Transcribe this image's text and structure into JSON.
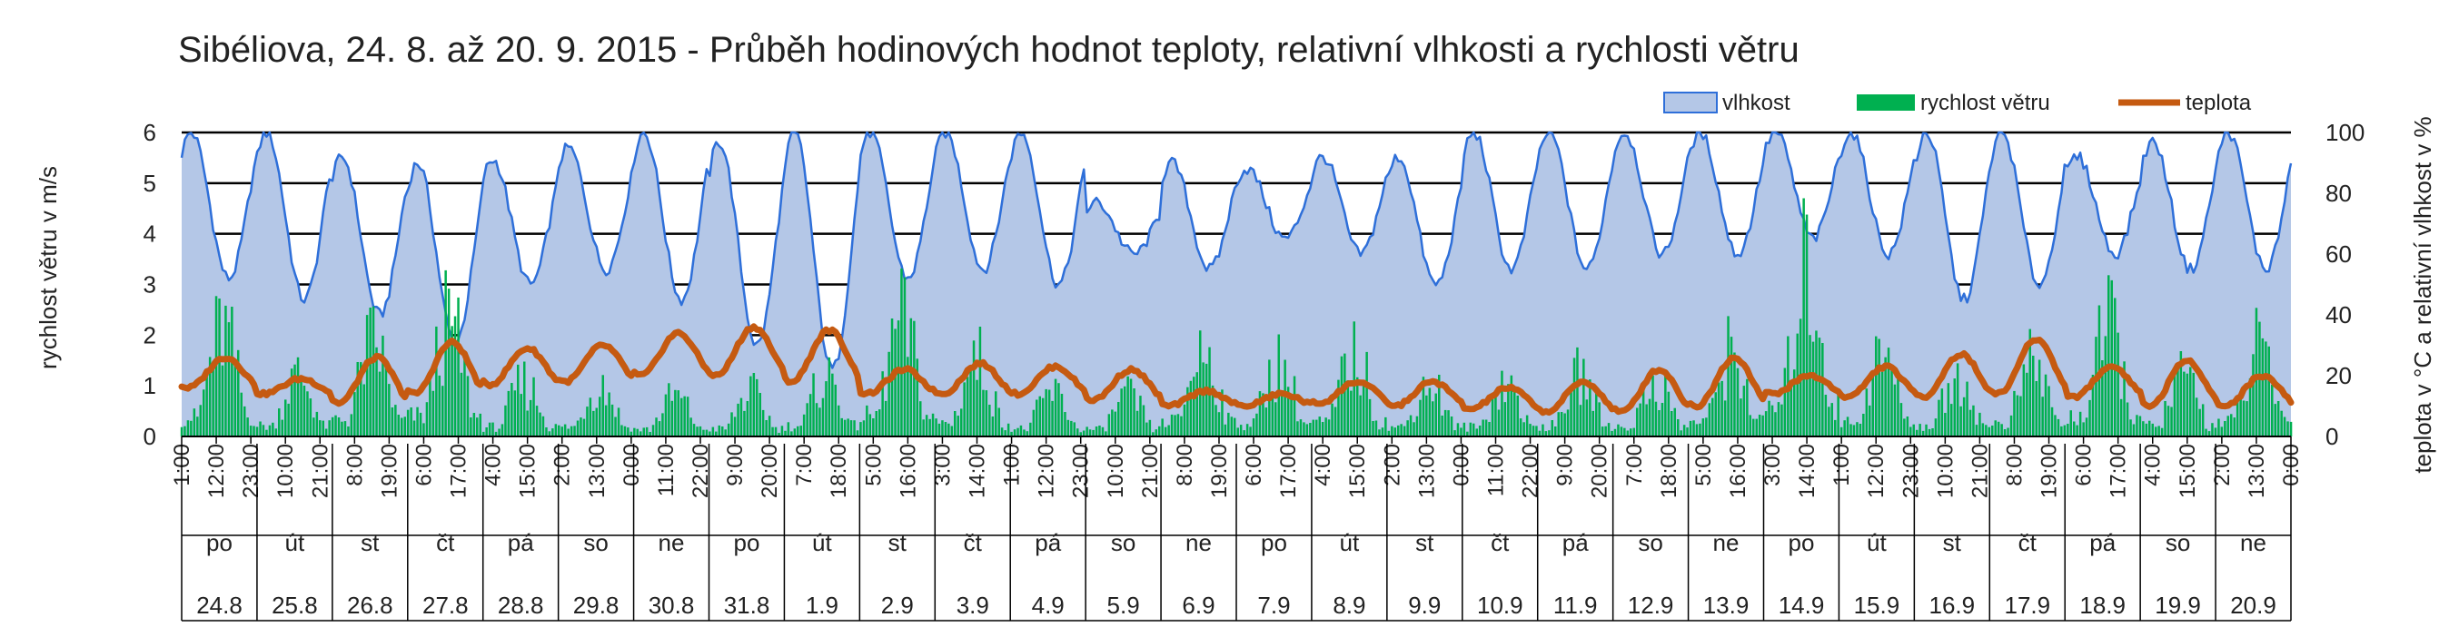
{
  "chart_data": {
    "type": "area",
    "title": "Sibéliova, 24. 8. až 20. 9. 2015 - Průběh hodinových hodnot teploty, relativní vlhkosti a rychlosti větru",
    "ylabel_left": "rychlost větru v m/s",
    "ylabel_right": "teplota v °C a relativní vlhkost v %",
    "ylim_left": [
      0,
      6
    ],
    "ylim_right": [
      0,
      100
    ],
    "yticks_left": [
      "0",
      "1",
      "2",
      "3",
      "4",
      "5",
      "6"
    ],
    "yticks_right": [
      "0",
      "20",
      "40",
      "60",
      "80",
      "100"
    ],
    "grid": true,
    "legend_position": "top-right",
    "colors": {
      "humidity_fill": "#b4c7e7",
      "humidity_line": "#2e6fd9",
      "wind": "#00b050",
      "temperature": "#c55a11"
    },
    "series": [
      {
        "name": "vlhkost",
        "kind": "area",
        "axis": "right",
        "unit": "%",
        "daily_min": [
          52,
          45,
          40,
          31,
          50,
          55,
          45,
          30,
          22,
          52,
          55,
          50,
          60,
          55,
          65,
          60,
          50,
          55,
          55,
          60,
          60,
          65,
          60,
          45,
          50,
          60,
          55,
          55
        ],
        "daily_max": [
          100,
          100,
          92,
          90,
          91,
          95,
          100,
          97,
          100,
          100,
          100,
          100,
          77,
          90,
          88,
          92,
          92,
          100,
          100,
          100,
          100,
          100,
          100,
          100,
          100,
          92,
          97,
          100
        ]
      },
      {
        "name": "rychlost větru",
        "kind": "bar",
        "axis": "left",
        "unit": "m/s",
        "daily_peak": [
          3.2,
          1.8,
          2.8,
          3.4,
          1.6,
          1.6,
          1.2,
          1.3,
          1.8,
          3.4,
          2.3,
          1.3,
          1.2,
          2.6,
          2.2,
          2.4,
          1.6,
          1.6,
          1.8,
          1.6,
          2.5,
          5.0,
          2.4,
          1.8,
          2.2,
          3.2,
          1.8,
          2.6
        ]
      },
      {
        "name": "teplota",
        "kind": "line",
        "axis": "right",
        "unit": "°C",
        "daily_min": [
          16,
          14,
          11,
          14,
          17,
          18,
          20,
          20,
          18,
          14,
          14,
          14,
          12,
          10,
          10,
          11,
          10,
          9,
          8,
          8,
          10,
          14,
          13,
          13,
          14,
          13,
          10,
          10
        ],
        "daily_max": [
          26,
          19,
          26,
          31,
          29,
          30,
          34,
          36,
          35,
          22,
          24,
          23,
          22,
          15,
          14,
          18,
          18,
          16,
          18,
          22,
          26,
          20,
          23,
          27,
          32,
          23,
          25,
          20
        ]
      }
    ],
    "x_hour_labels": [
      "1:00",
      "12:00",
      "23:00",
      "10:00",
      "21:00",
      "8:00",
      "19:00",
      "6:00",
      "17:00",
      "4:00",
      "15:00",
      "2:00",
      "13:00",
      "0:00",
      "11:00",
      "22:00",
      "9:00",
      "20:00",
      "7:00",
      "18:00",
      "5:00",
      "16:00",
      "3:00",
      "14:00",
      "1:00",
      "12:00",
      "23:00",
      "10:00",
      "21:00",
      "8:00",
      "19:00",
      "6:00",
      "17:00",
      "4:00",
      "15:00",
      "2:00",
      "13:00",
      "0:00",
      "11:00",
      "22:00",
      "9:00",
      "20:00",
      "7:00",
      "18:00",
      "5:00",
      "16:00",
      "3:00",
      "14:00",
      "1:00",
      "12:00",
      "23:00",
      "10:00",
      "21:00",
      "8:00",
      "19:00",
      "6:00",
      "17:00",
      "4:00",
      "15:00",
      "2:00",
      "13:00",
      "0:00"
    ],
    "x_days": [
      "po",
      "út",
      "st",
      "čt",
      "pá",
      "so",
      "ne",
      "po",
      "út",
      "st",
      "čt",
      "pá",
      "so",
      "ne",
      "po",
      "út",
      "st",
      "čt",
      "pá",
      "so",
      "ne",
      "po",
      "út",
      "st",
      "čt",
      "pá",
      "so",
      "ne"
    ],
    "x_dates": [
      "24.8",
      "25.8",
      "26.8",
      "27.8",
      "28.8",
      "29.8",
      "30.8",
      "31.8",
      "1.9",
      "2.9",
      "3.9",
      "4.9",
      "5.9",
      "6.9",
      "7.9",
      "8.9",
      "9.9",
      "10.9",
      "11.9",
      "12.9",
      "13.9",
      "14.9",
      "15.9",
      "16.9",
      "17.9",
      "18.9",
      "19.9",
      "20.9"
    ]
  }
}
